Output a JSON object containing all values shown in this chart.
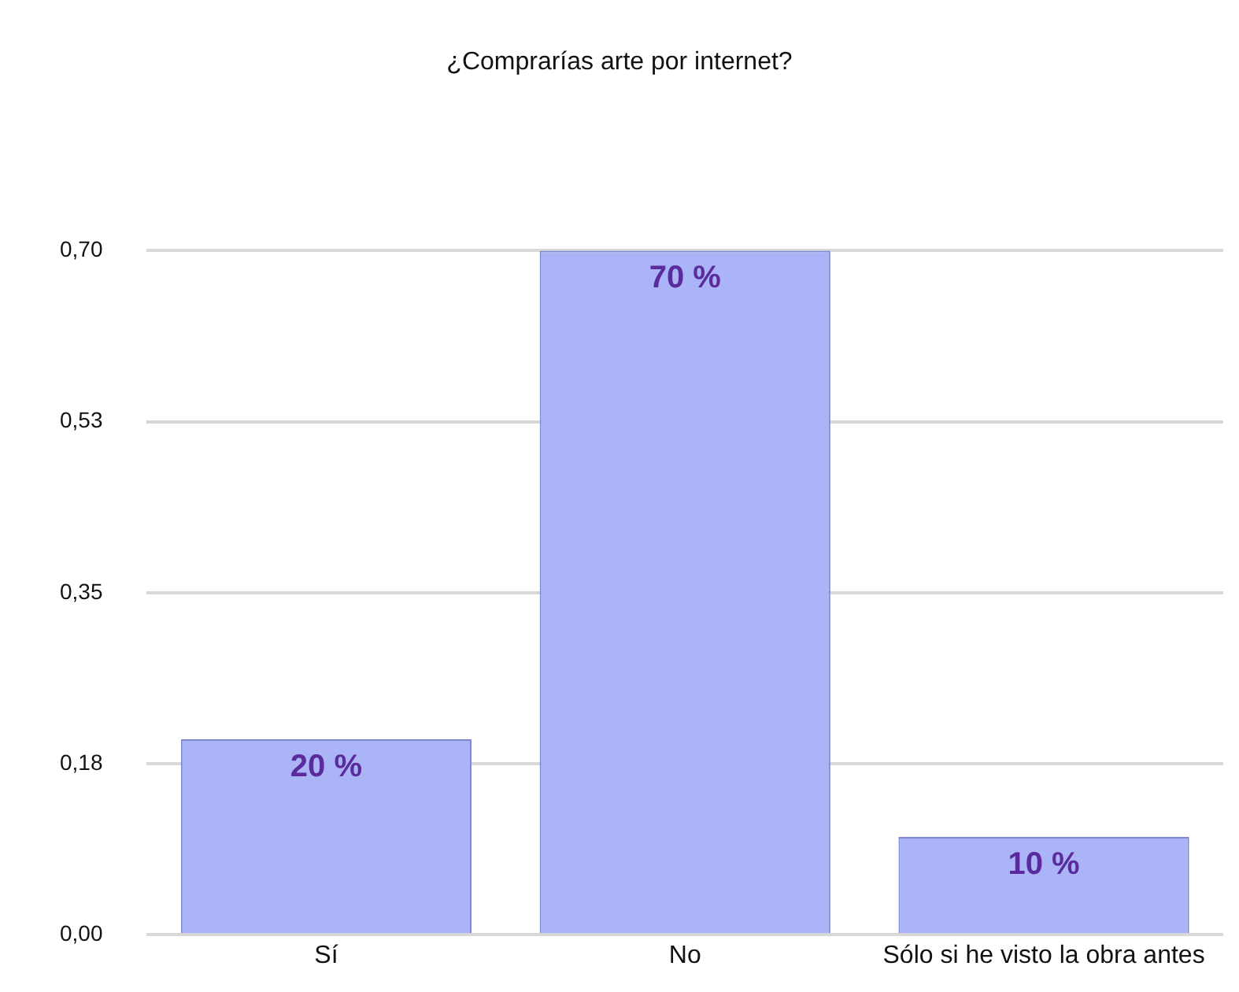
{
  "chart_data": {
    "type": "bar",
    "title": "¿Comprarías arte por internet?",
    "categories": [
      "Sí",
      "No",
      "Sólo si he visto la obra antes"
    ],
    "values": [
      0.2,
      0.7,
      0.1
    ],
    "value_labels": [
      "20 %",
      "70 %",
      "10 %"
    ],
    "color": "#aab4f6",
    "ylim": [
      0,
      0.7
    ],
    "yticks": [
      {
        "value": 0,
        "label": "0,00"
      },
      {
        "value": 0.175,
        "label": "0,18"
      },
      {
        "value": 0.35,
        "label": "0,35"
      },
      {
        "value": 0.525,
        "label": "0,53"
      },
      {
        "value": 0.7,
        "label": "0,70"
      }
    ],
    "grid": "y",
    "legend": false
  }
}
